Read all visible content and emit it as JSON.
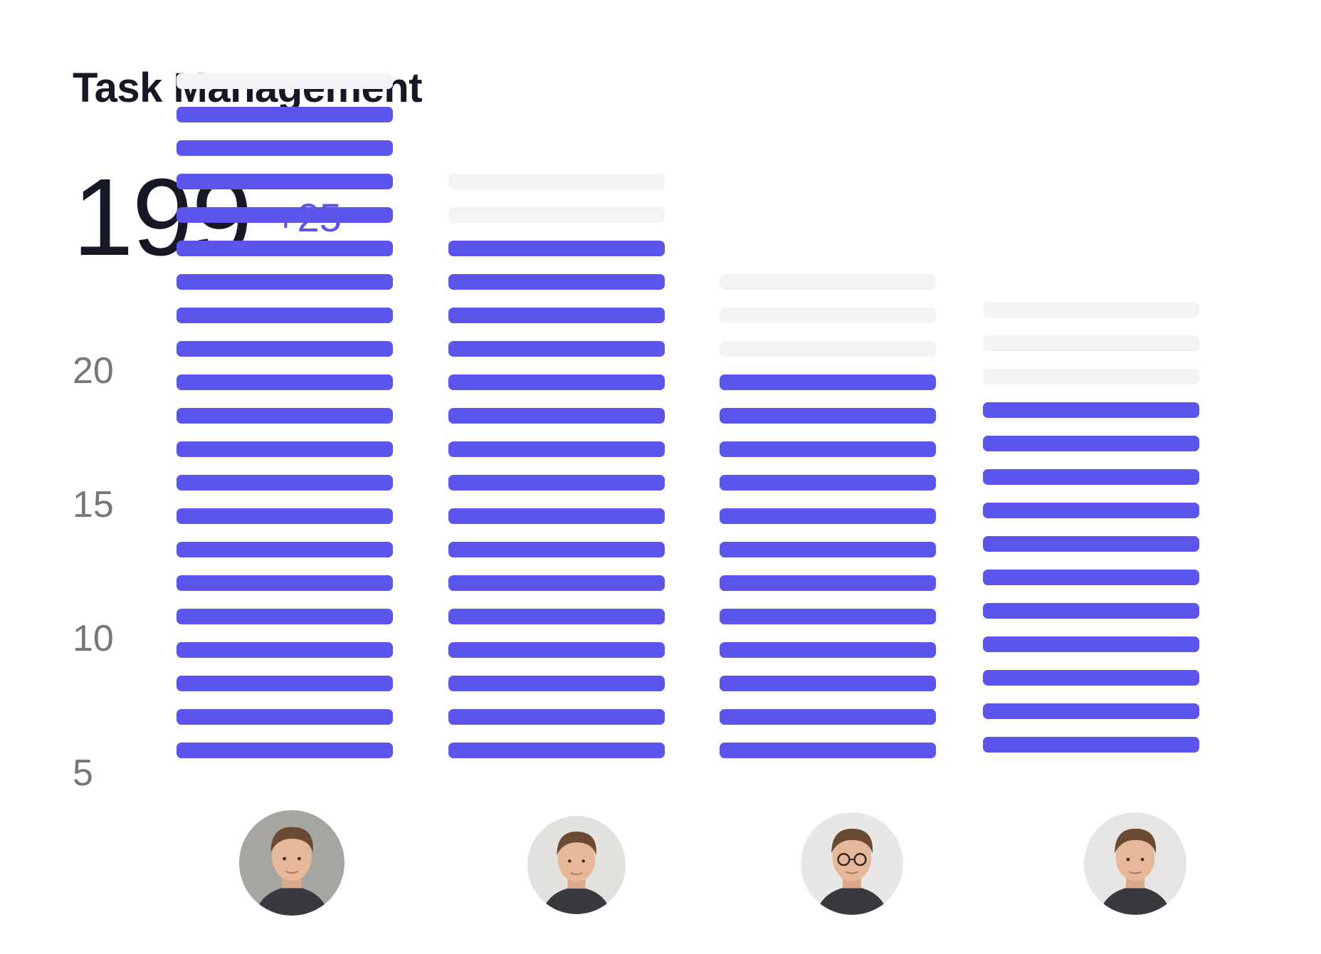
{
  "card": {
    "title": "Task Management",
    "metric_value": "199",
    "metric_delta": "+25"
  },
  "colors": {
    "accent": "#5B55EC",
    "track": "#F3F3F5",
    "text": "#171826",
    "tick": "#777777"
  },
  "chart_data": {
    "type": "bar",
    "style": "stacked segments",
    "categories": [
      "Person 1",
      "Person 2",
      "Person 3",
      "Person 4"
    ],
    "series": [
      {
        "values": [
          20,
          16,
          12,
          11
        ]
      },
      {
        "values": [
          21,
          18,
          15,
          14
        ]
      }
    ],
    "y_ticks": [
      "20",
      "15",
      "10",
      "5"
    ],
    "ylim": [
      5,
      20
    ],
    "grid": false
  },
  "avatars": [
    {
      "icon": "person-avatar-1",
      "tone": "#A6A59F"
    },
    {
      "icon": "person-avatar-2",
      "tone": "#E2E1DE"
    },
    {
      "icon": "person-avatar-3",
      "tone": "#E8E7E5"
    },
    {
      "icon": "person-avatar-4",
      "tone": "#E6E5E3"
    }
  ]
}
